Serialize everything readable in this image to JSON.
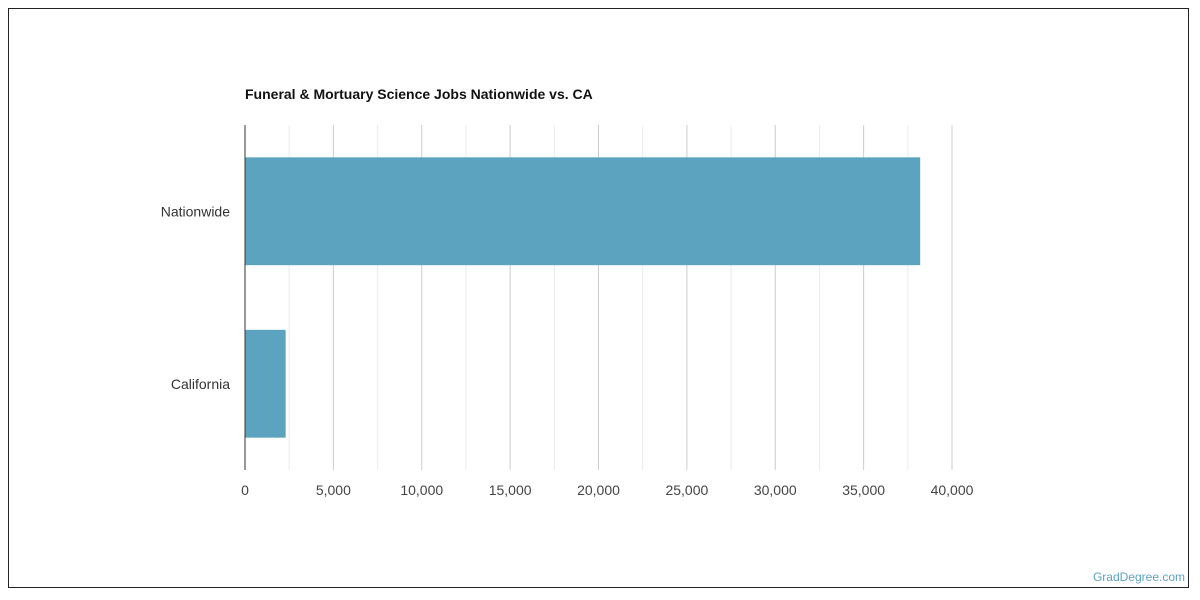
{
  "chart_data": {
    "type": "bar",
    "orientation": "horizontal",
    "title": "Funeral & Mortuary Science Jobs Nationwide vs. CA",
    "categories": [
      "Nationwide",
      "California"
    ],
    "values": [
      38200,
      2300
    ],
    "xlim": [
      0,
      40000
    ],
    "xticks": [
      0,
      5000,
      10000,
      15000,
      20000,
      25000,
      30000,
      35000,
      40000
    ],
    "xtick_labels": [
      "0",
      "5,000",
      "10,000",
      "15,000",
      "20,000",
      "25,000",
      "30,000",
      "35,000",
      "40,000"
    ],
    "xlabel": "",
    "ylabel": "",
    "grid": true,
    "legend": "none",
    "bar_color": "#5ba3bf"
  },
  "footer": {
    "watermark": "GradDegree.com"
  }
}
